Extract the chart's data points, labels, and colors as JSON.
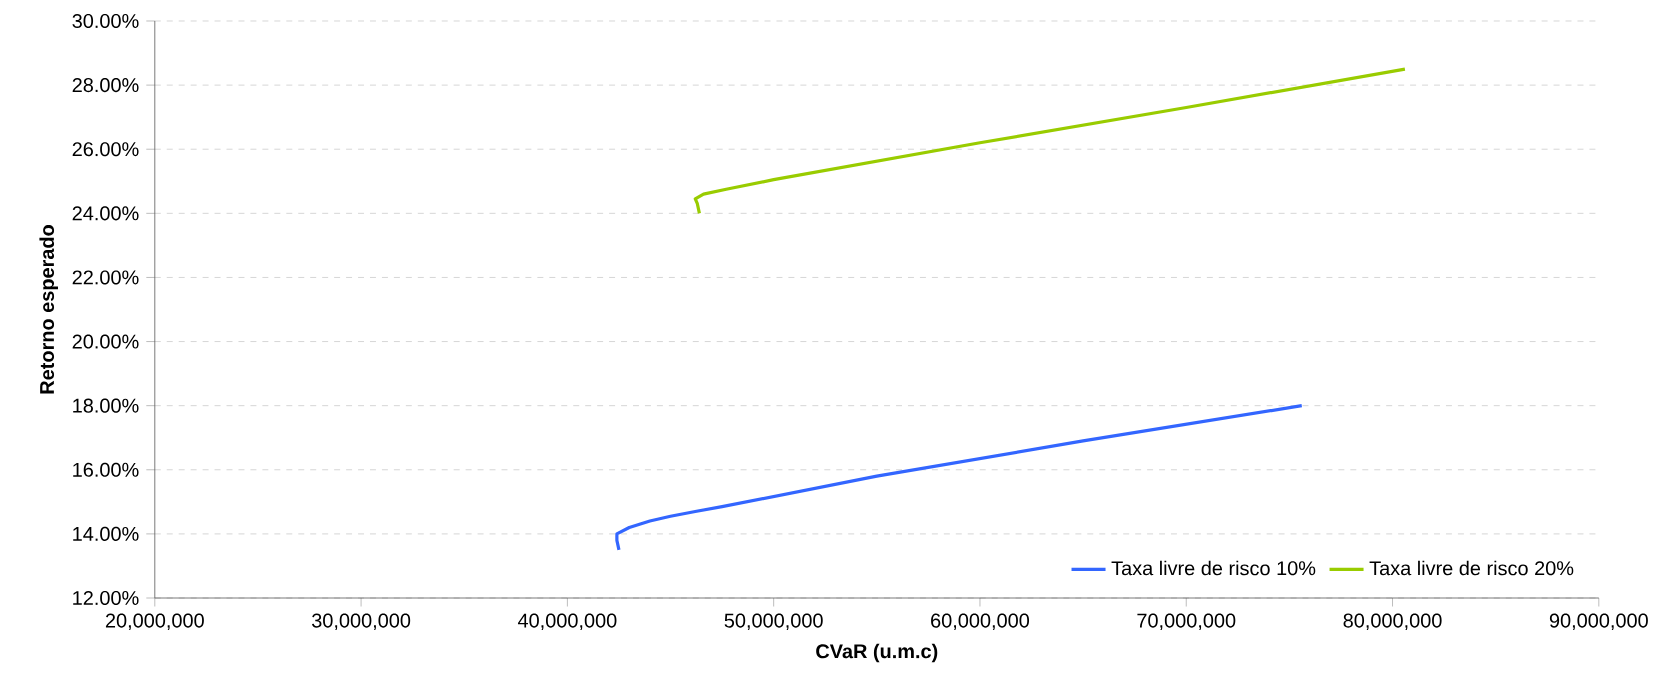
{
  "chart_data": {
    "type": "line",
    "xlabel": "CVaR (u.m.c)",
    "ylabel": "Retorno esperado",
    "series": [
      {
        "name": "Taxa livre de risco 10%",
        "color": "#3366ff",
        "x": [
          42500000,
          42400000,
          42400000,
          43000000,
          44000000,
          45000000,
          46200000,
          47500000,
          55000000,
          65000000,
          75600000
        ],
        "values": [
          13.5,
          13.8,
          14.0,
          14.2,
          14.4,
          14.55,
          14.7,
          14.85,
          15.8,
          16.9,
          18.0
        ]
      },
      {
        "name": "Taxa livre de risco 20%",
        "color": "#99cc00",
        "x": [
          46400000,
          46300000,
          46200000,
          46600000,
          47700000,
          50000000,
          60000000,
          70000000,
          80600000
        ],
        "values": [
          24.0,
          24.3,
          24.45,
          24.6,
          24.75,
          25.05,
          26.2,
          27.3,
          28.5
        ]
      }
    ],
    "xlim": [
      20000000,
      90000000
    ],
    "xticks": [
      {
        "value": 20000000,
        "label": "20,000,000"
      },
      {
        "value": 30000000,
        "label": "30,000,000"
      },
      {
        "value": 40000000,
        "label": "40,000,000"
      },
      {
        "value": 50000000,
        "label": "50,000,000"
      },
      {
        "value": 60000000,
        "label": "60,000,000"
      },
      {
        "value": 70000000,
        "label": "70,000,000"
      },
      {
        "value": 80000000,
        "label": "80,000,000"
      },
      {
        "value": 90000000,
        "label": "90,000,000"
      }
    ],
    "ylim": [
      12,
      30
    ],
    "yticks": [
      {
        "value": 12,
        "label": "12.00%"
      },
      {
        "value": 14,
        "label": "14.00%"
      },
      {
        "value": 16,
        "label": "16.00%"
      },
      {
        "value": 18,
        "label": "18.00%"
      },
      {
        "value": 20,
        "label": "20.00%"
      },
      {
        "value": 22,
        "label": "22.00%"
      },
      {
        "value": 24,
        "label": "24.00%"
      },
      {
        "value": 26,
        "label": "26.00%"
      },
      {
        "value": 28,
        "label": "28.00%"
      },
      {
        "value": 30,
        "label": "30.00%"
      }
    ],
    "grid": "y",
    "legend": "bottom right",
    "marker": "none",
    "line_style": "solid"
  }
}
